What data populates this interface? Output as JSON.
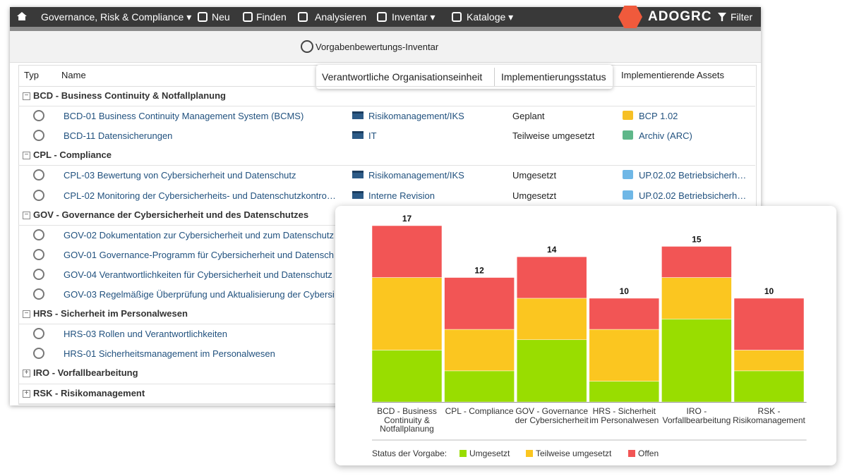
{
  "nav": {
    "items": [
      "Governance, Risk & Compliance",
      "Neu",
      "Finden",
      "Analysieren",
      "Inventar",
      "Kataloge"
    ],
    "brand": "ADOGRC",
    "filter": "Filter"
  },
  "page_title": "Vorgabenbewertungs-Inventar",
  "table": {
    "columns": [
      "Typ",
      "Name",
      "Verantwortliche Organisationseinheit",
      "Implementierungsstatus",
      "Implementierende Assets"
    ],
    "groups": [
      {
        "title": "BCD - Business Continuity & Notfallplanung",
        "expanded": true,
        "rows": [
          {
            "name": "BCD-01 Business Continuity Management System (BCMS)",
            "org": "Risikomanagement/IKS",
            "status": "Geplant",
            "asset": "BCP 1.02",
            "asset_color": "#f6c026"
          },
          {
            "name": "BCD-11 Datensicherungen",
            "org": "IT",
            "status": "Teilweise umgesetzt",
            "asset": "Archiv (ARC)",
            "asset_color": "#5fb78a"
          }
        ]
      },
      {
        "title": "CPL - Compliance",
        "expanded": true,
        "rows": [
          {
            "name": "CPL-03 Bewertung von Cybersicherheit und Datenschutz",
            "org": "Risikomanagement/IKS",
            "status": "Umgesetzt",
            "asset": "UP.02.02 Betriebsicherh…",
            "asset_color": "#6fb7e6"
          },
          {
            "name": "CPL-02 Monitoring der Cybersicherheits- und Datenschutzkontrollen",
            "org": "Interne Revision",
            "status": "Umgesetzt",
            "asset": "UP.02.02 Betriebsicherh…",
            "asset_color": "#6fb7e6"
          }
        ]
      },
      {
        "title": "GOV - Governance der Cybersicherheit und des Datenschutzes",
        "expanded": true,
        "rows": [
          {
            "name": "GOV-02 Dokumentation zur Cybersicherheit und zum Datenschutz"
          },
          {
            "name": "GOV-01 Governance-Programm für Cybersicherheit und Datensch"
          },
          {
            "name": "GOV-04 Verantwortlichkeiten für Cybersicherheit und Datenschutz"
          },
          {
            "name": "GOV-03 Regelmäßige Überprüfung und Aktualisierung der Cybersi"
          }
        ]
      },
      {
        "title": "HRS - Sicherheit im Personalwesen",
        "expanded": true,
        "rows": [
          {
            "name": "HRS-03 Rollen und Verantwortlichkeiten"
          },
          {
            "name": "HRS-01 Sicherheitsmanagement im Personalwesen"
          }
        ]
      },
      {
        "title": "IRO - Vorfallbearbeitung",
        "expanded": false,
        "rows": []
      },
      {
        "title": "RSK - Risikomanagement",
        "expanded": false,
        "rows": []
      }
    ]
  },
  "chart_data": {
    "type": "bar",
    "stacked": true,
    "categories": [
      "BCD - Business Continuity & Notfallplanung",
      "CPL - Compliance",
      "GOV - Governance der Cybersicherheit",
      "HRS - Sicherheit im Personalwesen",
      "IRO - Vorfallbearbeitung",
      "RSK - Risikomanagement"
    ],
    "series": [
      {
        "name": "Umgesetzt",
        "color": "#99dd00",
        "values": [
          5,
          3,
          6,
          2,
          8,
          3
        ]
      },
      {
        "name": "Teilweise umgesetzt",
        "color": "#fbc620",
        "values": [
          7,
          4,
          4,
          5,
          4,
          2
        ]
      },
      {
        "name": "Offen",
        "color": "#f25555",
        "values": [
          5,
          5,
          4,
          3,
          3,
          5
        ]
      }
    ],
    "totals": [
      17,
      12,
      14,
      10,
      15,
      10
    ],
    "legend_title": "Status der Vorgabe:"
  }
}
